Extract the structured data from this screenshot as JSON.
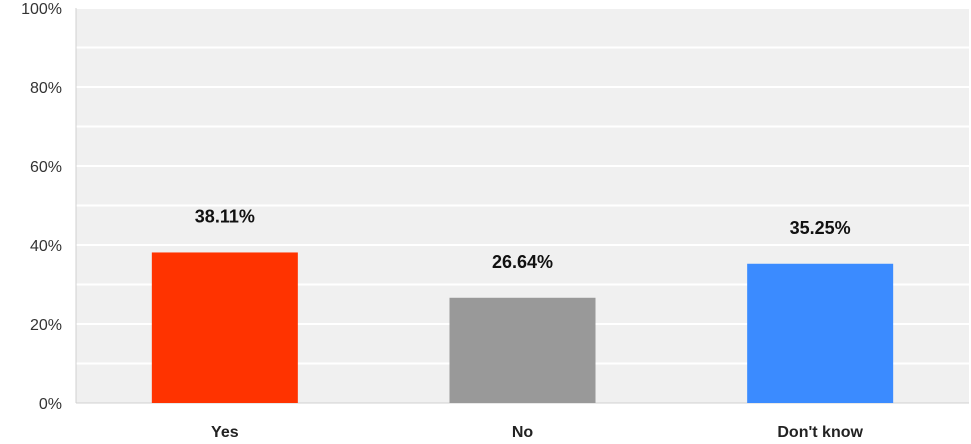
{
  "chart_data": {
    "type": "bar",
    "categories": [
      "Yes",
      "No",
      "Don't know"
    ],
    "values": [
      38.11,
      26.64,
      35.25
    ],
    "data_labels": [
      "38.11%",
      "26.64%",
      "35.25%"
    ],
    "colors": [
      "#ff3300",
      "#999999",
      "#3b8bff"
    ],
    "ylim": [
      0,
      100
    ],
    "y_ticks": [
      0,
      20,
      40,
      60,
      80,
      100
    ],
    "y_tick_labels": [
      "0%",
      "20%",
      "40%",
      "60%",
      "80%",
      "100%"
    ],
    "minor_gridlines": [
      10,
      30,
      50,
      70,
      90
    ],
    "grid": true,
    "background": "#f0f0f0",
    "gridline_color": "#ffffff"
  }
}
